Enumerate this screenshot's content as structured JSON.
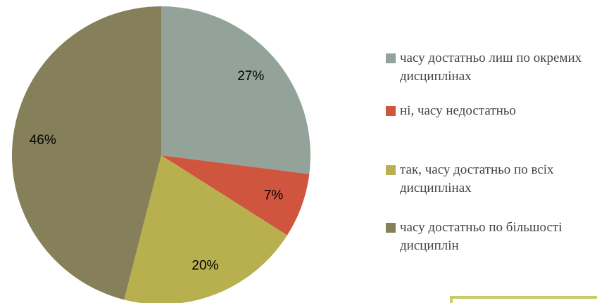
{
  "chart_data": {
    "type": "pie",
    "categories": [
      "часу достатньо лиш по окремих дисциплінах",
      "ні, часу недостатньо",
      "так, часу достатньо по всіх дисциплінах",
      "часу достатньо по більшості дисциплін"
    ],
    "values": [
      27,
      7,
      20,
      46
    ],
    "value_labels": [
      "27%",
      "7%",
      "20%",
      "46%"
    ],
    "colors": [
      "#94a39a",
      "#d0553f",
      "#b8b04f",
      "#857f5a"
    ]
  }
}
